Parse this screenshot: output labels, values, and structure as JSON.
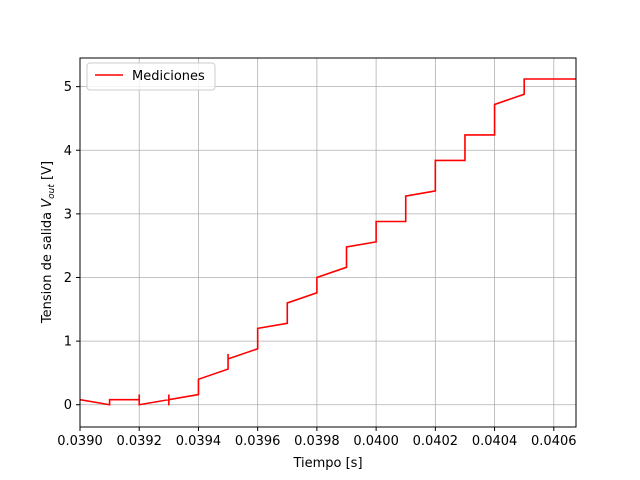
{
  "chart_data": {
    "type": "line",
    "title": "",
    "xlabel": "Tiempo [s]",
    "ylabel_main": "Tension de salida ",
    "ylabel_var": "V",
    "ylabel_sub": "out",
    "ylabel_unit": " [V]",
    "xlim": [
      0.039,
      0.040675
    ],
    "ylim": [
      -0.35,
      5.45
    ],
    "xticks": [
      0.039,
      0.0392,
      0.0394,
      0.0396,
      0.0398,
      0.04,
      0.0402,
      0.0404,
      0.0406
    ],
    "xtick_labels": [
      "0.0390",
      "0.0392",
      "0.0394",
      "0.0396",
      "0.0398",
      "0.0400",
      "0.0402",
      "0.0404",
      "0.0406"
    ],
    "yticks": [
      0,
      1,
      2,
      3,
      4,
      5
    ],
    "ytick_labels": [
      "0",
      "1",
      "2",
      "3",
      "4",
      "5"
    ],
    "grid": true,
    "legend_position": "top-left",
    "series": [
      {
        "name": "Mediciones",
        "color": "#ff0000",
        "x": [
          0.039,
          0.0391,
          0.0391,
          0.0392,
          0.0392,
          0.0392,
          0.0392,
          0.0393,
          0.0393,
          0.0393,
          0.0393,
          0.0394,
          0.0394,
          0.0395,
          0.0395,
          0.0395,
          0.0395,
          0.0396,
          0.0396,
          0.0397,
          0.0397,
          0.0398,
          0.0398,
          0.0399,
          0.0399,
          0.04,
          0.04,
          0.04,
          0.04,
          0.0401,
          0.0401,
          0.0402,
          0.0402,
          0.0403,
          0.0403,
          0.0404,
          0.0404,
          0.0404,
          0.0405,
          0.0405,
          0.0407,
          0.0407,
          0.0407,
          0.040675
        ],
        "y": [
          0.08,
          0.0,
          0.08,
          0.08,
          0.16,
          0.0,
          0.0,
          0.08,
          -0.01,
          0.16,
          0.08,
          0.16,
          0.4,
          0.56,
          0.8,
          0.64,
          0.72,
          0.88,
          1.2,
          1.28,
          1.6,
          1.76,
          2.0,
          2.16,
          2.48,
          2.56,
          2.8,
          2.64,
          2.88,
          2.88,
          3.28,
          3.36,
          3.84,
          3.84,
          4.24,
          4.24,
          4.64,
          4.72,
          4.88,
          5.12,
          5.12,
          5.04,
          5.12,
          5.12
        ]
      }
    ]
  }
}
